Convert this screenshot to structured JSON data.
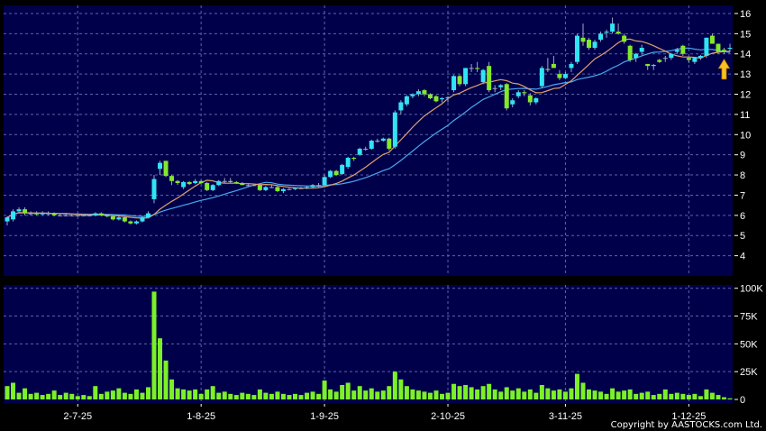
{
  "chart_data": [
    {
      "type": "candlestick",
      "panel": "price",
      "ylim": [
        3,
        16.4
      ],
      "y_ticks": [
        4,
        5,
        6,
        7,
        8,
        9,
        10,
        11,
        12,
        13,
        14,
        15,
        16
      ],
      "grid": true,
      "colors": {
        "up": "#30e4f4",
        "down": "#84e82a",
        "background": "#00004a",
        "grid": "#5a64a8",
        "ma_short": "#e0a070",
        "ma_long": "#4aa8f0",
        "marker": "#f8c020"
      },
      "x_tick_labels": [
        {
          "index": 12,
          "label": "2-7-25"
        },
        {
          "index": 33,
          "label": "1-8-25"
        },
        {
          "index": 54,
          "label": "1-9-25"
        },
        {
          "index": 75,
          "label": "2-10-25"
        },
        {
          "index": 95,
          "label": "3-11-25"
        },
        {
          "index": 116,
          "label": "1-12-25"
        }
      ],
      "ohlc": [
        [
          5.7,
          5.95,
          5.5,
          5.9
        ],
        [
          5.8,
          6.3,
          5.7,
          6.2
        ],
        [
          6.2,
          6.4,
          6.1,
          6.3
        ],
        [
          6.3,
          6.4,
          6.0,
          6.1
        ],
        [
          6.1,
          6.2,
          6.0,
          6.1
        ],
        [
          6.1,
          6.2,
          6.0,
          6.05
        ],
        [
          6.05,
          6.2,
          6.0,
          6.1
        ],
        [
          6.1,
          6.2,
          6.0,
          6.1
        ],
        [
          6.1,
          6.15,
          5.95,
          6.0
        ],
        [
          6.0,
          6.1,
          5.95,
          6.0
        ],
        [
          6.0,
          6.1,
          5.95,
          6.0
        ],
        [
          6.0,
          6.05,
          5.95,
          6.0
        ],
        [
          6.0,
          6.1,
          5.95,
          6.0
        ],
        [
          6.0,
          6.05,
          5.95,
          6.0
        ],
        [
          6.0,
          6.05,
          5.95,
          6.0
        ],
        [
          6.0,
          6.15,
          5.95,
          6.1
        ],
        [
          6.1,
          6.15,
          5.95,
          6.0
        ],
        [
          6.0,
          6.05,
          5.9,
          5.95
        ],
        [
          5.95,
          6.0,
          5.75,
          5.8
        ],
        [
          5.8,
          5.95,
          5.75,
          5.9
        ],
        [
          5.9,
          5.95,
          5.65,
          5.7
        ],
        [
          5.7,
          5.75,
          5.55,
          5.6
        ],
        [
          5.6,
          5.75,
          5.55,
          5.7
        ],
        [
          5.7,
          5.95,
          5.65,
          5.9
        ],
        [
          5.9,
          6.2,
          5.85,
          6.1
        ],
        [
          6.8,
          8.0,
          6.6,
          7.8
        ],
        [
          8.3,
          8.7,
          8.0,
          8.6
        ],
        [
          8.7,
          8.7,
          7.9,
          7.95
        ],
        [
          7.95,
          8.0,
          7.5,
          7.7
        ],
        [
          7.7,
          7.75,
          7.5,
          7.6
        ],
        [
          7.4,
          7.7,
          7.3,
          7.65
        ],
        [
          7.65,
          7.7,
          7.5,
          7.55
        ],
        [
          7.6,
          7.8,
          7.55,
          7.7
        ],
        [
          7.7,
          7.75,
          7.55,
          7.6
        ],
        [
          7.6,
          7.65,
          7.2,
          7.25
        ],
        [
          7.25,
          7.55,
          7.2,
          7.5
        ],
        [
          7.5,
          7.75,
          7.45,
          7.7
        ],
        [
          7.7,
          7.85,
          7.6,
          7.7
        ],
        [
          7.7,
          7.85,
          7.6,
          7.65
        ],
        [
          7.65,
          7.7,
          7.55,
          7.6
        ],
        [
          7.6,
          7.65,
          7.5,
          7.5
        ],
        [
          7.5,
          7.6,
          7.45,
          7.5
        ],
        [
          7.5,
          7.55,
          7.45,
          7.5
        ],
        [
          7.5,
          7.55,
          7.2,
          7.25
        ],
        [
          7.25,
          7.45,
          7.2,
          7.4
        ],
        [
          7.4,
          7.5,
          7.35,
          7.4
        ],
        [
          7.4,
          7.45,
          7.15,
          7.2
        ],
        [
          7.2,
          7.35,
          7.1,
          7.3
        ],
        [
          7.3,
          7.35,
          7.25,
          7.3
        ],
        [
          7.3,
          7.4,
          7.25,
          7.35
        ],
        [
          7.35,
          7.4,
          7.3,
          7.35
        ],
        [
          7.35,
          7.45,
          7.3,
          7.4
        ],
        [
          7.4,
          7.55,
          7.35,
          7.5
        ],
        [
          7.5,
          7.6,
          7.4,
          7.5
        ],
        [
          7.5,
          8.0,
          7.45,
          7.9
        ],
        [
          7.9,
          8.25,
          7.85,
          8.2
        ],
        [
          8.2,
          8.25,
          7.95,
          8.0
        ],
        [
          8.05,
          8.55,
          8.0,
          8.5
        ],
        [
          8.4,
          8.9,
          8.3,
          8.85
        ],
        [
          8.85,
          8.9,
          8.7,
          8.8
        ],
        [
          9.0,
          9.35,
          8.95,
          9.3
        ],
        [
          9.3,
          9.4,
          9.2,
          9.3
        ],
        [
          9.3,
          9.75,
          9.25,
          9.7
        ],
        [
          9.7,
          9.8,
          9.6,
          9.7
        ],
        [
          9.7,
          9.85,
          9.65,
          9.8
        ],
        [
          9.8,
          9.85,
          9.2,
          9.3
        ],
        [
          9.4,
          11.2,
          9.3,
          11.1
        ],
        [
          11.2,
          11.7,
          11.0,
          11.6
        ],
        [
          11.5,
          11.95,
          11.4,
          11.9
        ],
        [
          11.9,
          12.05,
          11.8,
          12.0
        ],
        [
          12.0,
          12.25,
          11.9,
          12.15
        ],
        [
          12.2,
          12.25,
          11.9,
          12.0
        ],
        [
          12.0,
          12.05,
          11.75,
          11.8
        ],
        [
          11.9,
          11.95,
          11.6,
          11.65
        ],
        [
          11.75,
          11.85,
          11.6,
          11.8
        ],
        [
          11.8,
          11.9,
          11.6,
          11.85
        ],
        [
          12.2,
          12.95,
          12.1,
          12.9
        ],
        [
          12.9,
          12.95,
          12.4,
          12.5
        ],
        [
          12.5,
          13.3,
          12.4,
          13.3
        ],
        [
          13.3,
          13.5,
          13.1,
          13.3
        ],
        [
          13.3,
          13.6,
          13.1,
          13.25
        ],
        [
          12.6,
          13.25,
          12.5,
          13.2
        ],
        [
          13.4,
          13.6,
          12.1,
          12.2
        ],
        [
          12.3,
          12.45,
          12.1,
          12.3
        ],
        [
          12.35,
          12.5,
          12.2,
          12.45
        ],
        [
          12.5,
          12.55,
          11.2,
          11.3
        ],
        [
          11.5,
          11.8,
          11.35,
          11.7
        ],
        [
          11.9,
          12.2,
          11.8,
          12.1
        ],
        [
          12.1,
          12.2,
          11.9,
          12.05
        ],
        [
          11.95,
          12.05,
          11.45,
          11.6
        ],
        [
          11.6,
          11.85,
          11.5,
          11.8
        ],
        [
          12.4,
          13.4,
          12.3,
          13.3
        ],
        [
          13.25,
          13.8,
          13.1,
          13.2
        ],
        [
          13.5,
          13.9,
          13.3,
          13.3
        ],
        [
          13.0,
          13.2,
          12.7,
          12.8
        ],
        [
          12.8,
          13.1,
          12.75,
          13.0
        ],
        [
          13.3,
          13.6,
          13.1,
          13.5
        ],
        [
          13.6,
          15.0,
          13.5,
          14.9
        ],
        [
          14.8,
          15.5,
          14.4,
          14.6
        ],
        [
          14.7,
          14.8,
          14.2,
          14.3
        ],
        [
          14.3,
          14.7,
          14.2,
          14.6
        ],
        [
          14.7,
          15.1,
          14.6,
          15.0
        ],
        [
          15.05,
          15.2,
          14.8,
          15.1
        ],
        [
          15.1,
          15.8,
          15.0,
          15.5
        ],
        [
          15.1,
          15.5,
          14.95,
          15.0
        ],
        [
          14.9,
          15.0,
          14.5,
          14.6
        ],
        [
          14.4,
          14.45,
          13.6,
          13.7
        ],
        [
          13.8,
          14.05,
          13.6,
          14.0
        ],
        [
          14.1,
          14.45,
          13.95,
          14.3
        ],
        [
          13.5,
          13.5,
          13.2,
          13.4
        ],
        [
          13.4,
          13.5,
          13.2,
          13.45
        ],
        [
          13.7,
          13.75,
          13.55,
          13.6
        ],
        [
          13.8,
          13.9,
          13.6,
          13.8
        ],
        [
          13.8,
          14.05,
          13.7,
          14.0
        ],
        [
          14.1,
          14.3,
          14.0,
          14.2
        ],
        [
          14.4,
          14.45,
          13.9,
          14.0
        ],
        [
          13.8,
          13.85,
          13.55,
          13.7
        ],
        [
          13.6,
          13.85,
          13.5,
          13.8
        ],
        [
          13.8,
          13.95,
          13.7,
          13.9
        ],
        [
          13.9,
          14.8,
          13.8,
          14.8
        ],
        [
          14.9,
          15.0,
          14.5,
          14.5
        ],
        [
          14.5,
          14.5,
          14.0,
          14.1
        ],
        [
          14.2,
          14.3,
          14.0,
          14.1
        ],
        [
          14.25,
          14.5,
          14.1,
          14.3
        ]
      ],
      "marker": {
        "type": "up-arrow",
        "index": 122
      }
    },
    {
      "type": "bar",
      "panel": "volume",
      "ylim": [
        0,
        103
      ],
      "y_ticks": [
        {
          "value": 0,
          "label": "0"
        },
        {
          "value": 25,
          "label": "25K"
        },
        {
          "value": 50,
          "label": "50K"
        },
        {
          "value": 75,
          "label": "75K"
        },
        {
          "value": 100,
          "label": "100K"
        }
      ],
      "unit": "K",
      "bar_color": "#7cf028",
      "values": [
        12,
        15,
        6,
        10,
        5,
        6,
        4,
        5,
        8,
        4,
        6,
        5,
        3,
        4,
        3,
        12,
        5,
        7,
        8,
        10,
        6,
        5,
        9,
        6,
        11,
        97,
        55,
        35,
        18,
        10,
        9,
        8,
        9,
        5,
        9,
        12,
        6,
        7,
        5,
        4,
        6,
        5,
        4,
        9,
        6,
        5,
        7,
        5,
        4,
        5,
        4,
        6,
        7,
        5,
        17,
        9,
        7,
        13,
        15,
        8,
        12,
        8,
        10,
        7,
        8,
        12,
        25,
        18,
        12,
        9,
        8,
        7,
        6,
        8,
        5,
        6,
        14,
        12,
        13,
        11,
        9,
        12,
        14,
        9,
        7,
        11,
        8,
        10,
        7,
        9,
        6,
        13,
        10,
        8,
        9,
        7,
        10,
        23,
        15,
        9,
        8,
        7,
        5,
        10,
        7,
        8,
        9,
        5,
        6,
        7,
        4,
        5,
        9,
        5,
        6,
        5,
        4,
        5,
        3,
        9,
        6,
        4,
        2,
        1
      ]
    }
  ],
  "footer": {
    "copyright": "Copyright by AASTOCKS.com Ltd."
  }
}
